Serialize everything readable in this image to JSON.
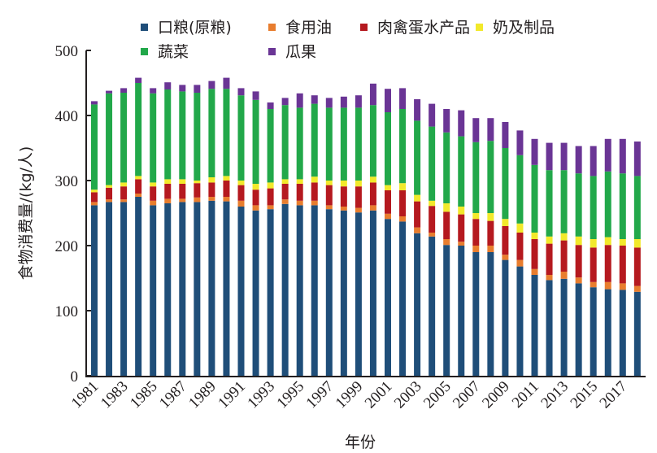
{
  "chart_data": {
    "type": "bar",
    "stacked": true,
    "title": "",
    "xlabel": "年份",
    "ylabel": "食物消费量/(kg/人)",
    "ylim": [
      0,
      500
    ],
    "yticks": [
      0,
      100,
      200,
      300,
      400,
      500
    ],
    "grid": false,
    "legend_position": "top",
    "categories": [
      "1981",
      "1982",
      "1983",
      "1984",
      "1985",
      "1986",
      "1987",
      "1988",
      "1989",
      "1990",
      "1991",
      "1992",
      "1993",
      "1994",
      "1995",
      "1996",
      "1997",
      "1998",
      "1999",
      "2000",
      "2001",
      "2002",
      "2003",
      "2004",
      "2005",
      "2006",
      "2007",
      "2008",
      "2009",
      "2010",
      "2011",
      "2012",
      "2013",
      "2014",
      "2015",
      "2016",
      "2017",
      "2018"
    ],
    "xtick_labels": [
      "1981",
      "1983",
      "1985",
      "1987",
      "1989",
      "1991",
      "1993",
      "1995",
      "1997",
      "1999",
      "2001",
      "2003",
      "2005",
      "2007",
      "2009",
      "2011",
      "2013",
      "2015",
      "2017"
    ],
    "series": [
      {
        "name": "口粮(原粮)",
        "color": "#1f4e79",
        "values": [
          262,
          267,
          267,
          275,
          262,
          265,
          267,
          267,
          269,
          268,
          260,
          254,
          256,
          264,
          262,
          262,
          256,
          254,
          251,
          254,
          241,
          237,
          219,
          214,
          201,
          200,
          190,
          190,
          178,
          168,
          155,
          147,
          149,
          142,
          136,
          133,
          132,
          129
        ]
      },
      {
        "name": "食用油",
        "color": "#e87d2e",
        "values": [
          5,
          4,
          4,
          5,
          7,
          7,
          5,
          7,
          6,
          7,
          9,
          8,
          6,
          7,
          7,
          7,
          6,
          6,
          7,
          8,
          8,
          8,
          9,
          6,
          9,
          6,
          10,
          10,
          8,
          10,
          9,
          8,
          11,
          9,
          8,
          11,
          10,
          9
        ]
      },
      {
        "name": "肉禽蛋水产品",
        "color": "#b5191f",
        "values": [
          15,
          18,
          20,
          22,
          22,
          23,
          23,
          22,
          22,
          25,
          24,
          24,
          26,
          24,
          26,
          28,
          31,
          31,
          33,
          35,
          36,
          40,
          40,
          41,
          42,
          42,
          41,
          38,
          44,
          42,
          46,
          48,
          48,
          50,
          53,
          57,
          58,
          59
        ]
      },
      {
        "name": "奶及制品",
        "color": "#f2e92b",
        "values": [
          4,
          4,
          6,
          5,
          6,
          7,
          7,
          4,
          8,
          7,
          7,
          9,
          9,
          7,
          7,
          9,
          7,
          9,
          9,
          9,
          8,
          11,
          10,
          8,
          13,
          12,
          9,
          12,
          11,
          14,
          10,
          11,
          11,
          13,
          13,
          12,
          10,
          13
        ]
      },
      {
        "name": "蔬菜",
        "color": "#22a84a",
        "values": [
          131,
          141,
          138,
          143,
          137,
          138,
          135,
          135,
          136,
          134,
          131,
          129,
          113,
          114,
          110,
          112,
          112,
          112,
          112,
          110,
          112,
          114,
          114,
          114,
          109,
          108,
          109,
          111,
          109,
          105,
          104,
          102,
          97,
          97,
          97,
          101,
          101,
          97
        ]
      },
      {
        "name": "瓜果",
        "color": "#6a3595",
        "values": [
          5,
          4,
          7,
          8,
          8,
          11,
          10,
          12,
          12,
          17,
          11,
          13,
          10,
          11,
          22,
          13,
          15,
          17,
          19,
          33,
          36,
          32,
          33,
          35,
          36,
          40,
          37,
          35,
          40,
          38,
          40,
          42,
          42,
          42,
          46,
          50,
          53,
          53
        ]
      }
    ]
  }
}
